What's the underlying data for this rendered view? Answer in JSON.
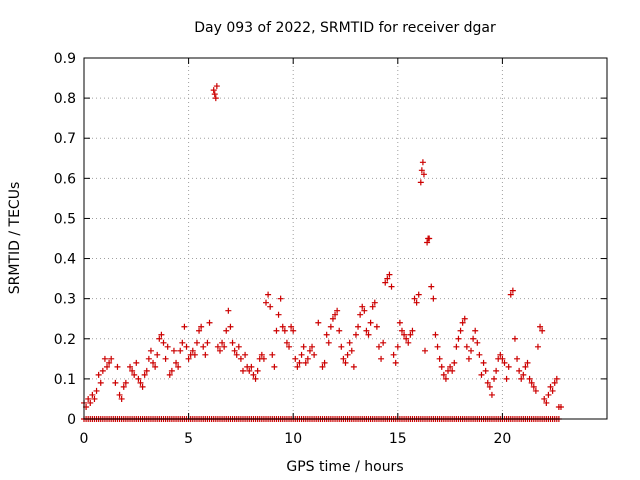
{
  "chart_data": {
    "type": "scatter",
    "title": "Day 093 of 2022, SRMTID for receiver dgar",
    "xlabel": "GPS time / hours",
    "ylabel": "SRMTID / TECUs",
    "xlim": [
      0,
      25
    ],
    "ylim": [
      0,
      0.9
    ],
    "x_ticks": [
      0,
      5,
      10,
      15,
      20
    ],
    "y_ticks": [
      0,
      0.1,
      0.2,
      0.3,
      0.4,
      0.5,
      0.6,
      0.7,
      0.8,
      0.9
    ],
    "x_tick_labels": [
      "0",
      "5",
      "10",
      "15",
      "20"
    ],
    "y_tick_labels": [
      "0",
      "0.1",
      "0.2",
      "0.3",
      "0.4",
      "0.5",
      "0.6",
      "0.7",
      "0.8",
      "0.9"
    ],
    "grid": true,
    "marker": "+",
    "color": "#cc0000",
    "zero_line_x_range": [
      0,
      22.7
    ],
    "series": [
      {
        "name": "SRMTID",
        "points": [
          [
            0.0,
            0.04
          ],
          [
            0.1,
            0.03
          ],
          [
            0.2,
            0.05
          ],
          [
            0.3,
            0.04
          ],
          [
            0.4,
            0.06
          ],
          [
            0.5,
            0.05
          ],
          [
            0.6,
            0.07
          ],
          [
            0.7,
            0.11
          ],
          [
            0.8,
            0.09
          ],
          [
            0.9,
            0.12
          ],
          [
            1.0,
            0.15
          ],
          [
            1.1,
            0.13
          ],
          [
            1.2,
            0.14
          ],
          [
            1.3,
            0.15
          ],
          [
            1.5,
            0.09
          ],
          [
            1.6,
            0.13
          ],
          [
            1.7,
            0.06
          ],
          [
            1.8,
            0.05
          ],
          [
            1.9,
            0.08
          ],
          [
            2.0,
            0.09
          ],
          [
            2.2,
            0.13
          ],
          [
            2.3,
            0.12
          ],
          [
            2.4,
            0.11
          ],
          [
            2.5,
            0.14
          ],
          [
            2.6,
            0.1
          ],
          [
            2.7,
            0.09
          ],
          [
            2.8,
            0.08
          ],
          [
            2.9,
            0.11
          ],
          [
            3.0,
            0.12
          ],
          [
            3.1,
            0.15
          ],
          [
            3.2,
            0.17
          ],
          [
            3.3,
            0.14
          ],
          [
            3.4,
            0.13
          ],
          [
            3.5,
            0.16
          ],
          [
            3.6,
            0.2
          ],
          [
            3.7,
            0.21
          ],
          [
            3.8,
            0.19
          ],
          [
            3.9,
            0.15
          ],
          [
            4.0,
            0.18
          ],
          [
            4.1,
            0.11
          ],
          [
            4.2,
            0.12
          ],
          [
            4.3,
            0.17
          ],
          [
            4.4,
            0.14
          ],
          [
            4.5,
            0.13
          ],
          [
            4.6,
            0.17
          ],
          [
            4.7,
            0.19
          ],
          [
            4.8,
            0.23
          ],
          [
            4.9,
            0.18
          ],
          [
            5.0,
            0.15
          ],
          [
            5.1,
            0.16
          ],
          [
            5.2,
            0.17
          ],
          [
            5.3,
            0.16
          ],
          [
            5.4,
            0.19
          ],
          [
            5.5,
            0.22
          ],
          [
            5.6,
            0.23
          ],
          [
            5.7,
            0.18
          ],
          [
            5.8,
            0.16
          ],
          [
            5.9,
            0.19
          ],
          [
            6.0,
            0.24
          ],
          [
            6.2,
            0.82
          ],
          [
            6.25,
            0.81
          ],
          [
            6.3,
            0.8
          ],
          [
            6.35,
            0.83
          ],
          [
            6.4,
            0.18
          ],
          [
            6.5,
            0.17
          ],
          [
            6.6,
            0.19
          ],
          [
            6.7,
            0.18
          ],
          [
            6.8,
            0.22
          ],
          [
            6.9,
            0.27
          ],
          [
            7.0,
            0.23
          ],
          [
            7.1,
            0.19
          ],
          [
            7.2,
            0.17
          ],
          [
            7.3,
            0.16
          ],
          [
            7.4,
            0.18
          ],
          [
            7.5,
            0.15
          ],
          [
            7.6,
            0.12
          ],
          [
            7.7,
            0.16
          ],
          [
            7.8,
            0.13
          ],
          [
            7.9,
            0.12
          ],
          [
            8.0,
            0.13
          ],
          [
            8.1,
            0.11
          ],
          [
            8.2,
            0.1
          ],
          [
            8.3,
            0.12
          ],
          [
            8.4,
            0.15
          ],
          [
            8.5,
            0.16
          ],
          [
            8.6,
            0.15
          ],
          [
            8.7,
            0.29
          ],
          [
            8.8,
            0.31
          ],
          [
            8.9,
            0.28
          ],
          [
            9.0,
            0.16
          ],
          [
            9.1,
            0.13
          ],
          [
            9.2,
            0.22
          ],
          [
            9.3,
            0.26
          ],
          [
            9.4,
            0.3
          ],
          [
            9.5,
            0.23
          ],
          [
            9.6,
            0.22
          ],
          [
            9.7,
            0.19
          ],
          [
            9.8,
            0.18
          ],
          [
            9.9,
            0.23
          ],
          [
            10.0,
            0.22
          ],
          [
            10.1,
            0.15
          ],
          [
            10.2,
            0.13
          ],
          [
            10.3,
            0.14
          ],
          [
            10.4,
            0.16
          ],
          [
            10.5,
            0.18
          ],
          [
            10.6,
            0.14
          ],
          [
            10.7,
            0.15
          ],
          [
            10.8,
            0.17
          ],
          [
            10.9,
            0.18
          ],
          [
            11.0,
            0.16
          ],
          [
            11.2,
            0.24
          ],
          [
            11.4,
            0.13
          ],
          [
            11.5,
            0.14
          ],
          [
            11.6,
            0.21
          ],
          [
            11.7,
            0.19
          ],
          [
            11.8,
            0.23
          ],
          [
            11.9,
            0.25
          ],
          [
            12.0,
            0.26
          ],
          [
            12.1,
            0.27
          ],
          [
            12.2,
            0.22
          ],
          [
            12.3,
            0.18
          ],
          [
            12.4,
            0.15
          ],
          [
            12.5,
            0.14
          ],
          [
            12.6,
            0.16
          ],
          [
            12.7,
            0.19
          ],
          [
            12.8,
            0.17
          ],
          [
            12.9,
            0.13
          ],
          [
            13.0,
            0.21
          ],
          [
            13.1,
            0.23
          ],
          [
            13.2,
            0.26
          ],
          [
            13.3,
            0.28
          ],
          [
            13.4,
            0.27
          ],
          [
            13.5,
            0.22
          ],
          [
            13.6,
            0.21
          ],
          [
            13.7,
            0.24
          ],
          [
            13.8,
            0.28
          ],
          [
            13.9,
            0.29
          ],
          [
            14.0,
            0.23
          ],
          [
            14.1,
            0.18
          ],
          [
            14.2,
            0.15
          ],
          [
            14.3,
            0.19
          ],
          [
            14.4,
            0.34
          ],
          [
            14.5,
            0.35
          ],
          [
            14.6,
            0.36
          ],
          [
            14.7,
            0.33
          ],
          [
            14.8,
            0.16
          ],
          [
            14.9,
            0.14
          ],
          [
            15.0,
            0.18
          ],
          [
            15.1,
            0.24
          ],
          [
            15.2,
            0.22
          ],
          [
            15.3,
            0.21
          ],
          [
            15.4,
            0.2
          ],
          [
            15.5,
            0.19
          ],
          [
            15.6,
            0.21
          ],
          [
            15.7,
            0.22
          ],
          [
            15.8,
            0.3
          ],
          [
            15.9,
            0.29
          ],
          [
            16.0,
            0.31
          ],
          [
            16.1,
            0.59
          ],
          [
            16.15,
            0.62
          ],
          [
            16.2,
            0.64
          ],
          [
            16.25,
            0.61
          ],
          [
            16.3,
            0.17
          ],
          [
            16.4,
            0.44
          ],
          [
            16.45,
            0.45
          ],
          [
            16.5,
            0.45
          ],
          [
            16.6,
            0.33
          ],
          [
            16.7,
            0.3
          ],
          [
            16.8,
            0.21
          ],
          [
            16.9,
            0.18
          ],
          [
            17.0,
            0.15
          ],
          [
            17.1,
            0.13
          ],
          [
            17.2,
            0.11
          ],
          [
            17.3,
            0.1
          ],
          [
            17.4,
            0.12
          ],
          [
            17.5,
            0.13
          ],
          [
            17.6,
            0.12
          ],
          [
            17.7,
            0.14
          ],
          [
            17.8,
            0.18
          ],
          [
            17.9,
            0.2
          ],
          [
            18.0,
            0.22
          ],
          [
            18.1,
            0.24
          ],
          [
            18.2,
            0.25
          ],
          [
            18.3,
            0.18
          ],
          [
            18.4,
            0.15
          ],
          [
            18.5,
            0.17
          ],
          [
            18.6,
            0.2
          ],
          [
            18.7,
            0.22
          ],
          [
            18.8,
            0.19
          ],
          [
            18.9,
            0.16
          ],
          [
            19.0,
            0.11
          ],
          [
            19.1,
            0.14
          ],
          [
            19.2,
            0.12
          ],
          [
            19.3,
            0.09
          ],
          [
            19.4,
            0.08
          ],
          [
            19.5,
            0.06
          ],
          [
            19.6,
            0.1
          ],
          [
            19.7,
            0.12
          ],
          [
            19.8,
            0.15
          ],
          [
            19.9,
            0.16
          ],
          [
            20.0,
            0.15
          ],
          [
            20.1,
            0.14
          ],
          [
            20.2,
            0.1
          ],
          [
            20.3,
            0.13
          ],
          [
            20.4,
            0.31
          ],
          [
            20.5,
            0.32
          ],
          [
            20.6,
            0.2
          ],
          [
            20.7,
            0.15
          ],
          [
            20.8,
            0.12
          ],
          [
            20.9,
            0.1
          ],
          [
            21.0,
            0.11
          ],
          [
            21.1,
            0.13
          ],
          [
            21.2,
            0.14
          ],
          [
            21.3,
            0.1
          ],
          [
            21.4,
            0.09
          ],
          [
            21.5,
            0.08
          ],
          [
            21.6,
            0.07
          ],
          [
            21.7,
            0.18
          ],
          [
            21.8,
            0.23
          ],
          [
            21.9,
            0.22
          ],
          [
            22.0,
            0.05
          ],
          [
            22.1,
            0.04
          ],
          [
            22.2,
            0.06
          ],
          [
            22.3,
            0.08
          ],
          [
            22.4,
            0.07
          ],
          [
            22.5,
            0.09
          ],
          [
            22.6,
            0.1
          ],
          [
            22.7,
            0.03
          ],
          [
            22.8,
            0.03
          ]
        ]
      }
    ]
  }
}
